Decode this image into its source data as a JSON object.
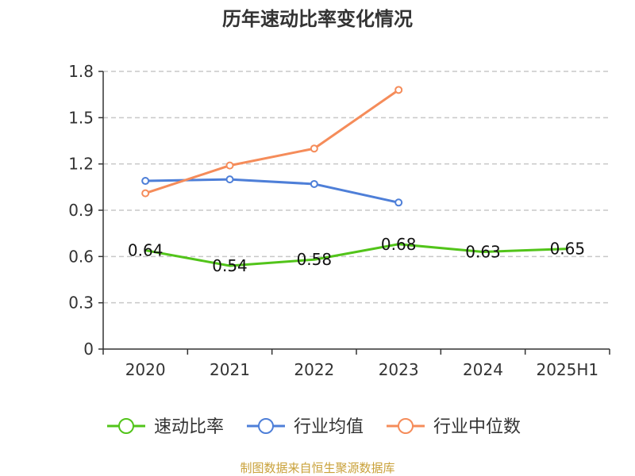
{
  "chart_data": {
    "type": "line",
    "title": "历年速动比率变化情况",
    "categories": [
      "2020",
      "2021",
      "2022",
      "2023",
      "2024",
      "2025H1"
    ],
    "ylim": [
      0,
      1.8
    ],
    "yticks": [
      "0",
      "0.3",
      "0.6",
      "0.9",
      "1.2",
      "1.5",
      "1.8"
    ],
    "grid": true,
    "legend_position": "bottom",
    "series": [
      {
        "name": "速动比率",
        "color": "#52c41a",
        "values": [
          0.64,
          0.54,
          0.58,
          0.68,
          0.63,
          0.65
        ],
        "labels": [
          "0.64",
          "0.54",
          "0.58",
          "0.68",
          "0.63",
          "0.65"
        ]
      },
      {
        "name": "行业均值",
        "color": "#4e7fd8",
        "values": [
          1.09,
          1.1,
          1.07,
          0.95,
          null,
          null
        ]
      },
      {
        "name": "行业中位数",
        "color": "#f58c5a",
        "values": [
          1.01,
          1.19,
          1.3,
          1.68,
          null,
          null
        ]
      }
    ]
  },
  "source": {
    "text": "制图数据来自恒生聚源数据库",
    "color": "#c9a13a"
  }
}
